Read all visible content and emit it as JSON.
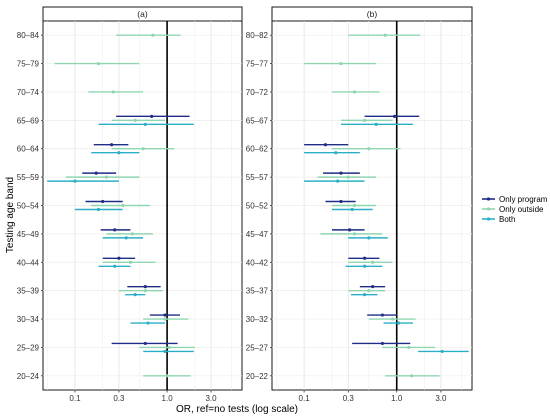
{
  "chart_data": {
    "type": "forest",
    "xlabel": "OR, ref=no tests (log scale)",
    "ylabel": "Testing age band",
    "x_scale": "log",
    "xlim": [
      0.045,
      6.5
    ],
    "x_ticks": [
      0.1,
      0.3,
      1.0,
      3.0
    ],
    "x_tick_labels": [
      "0.1",
      "0.3",
      "1.0",
      "3.0"
    ],
    "reference_line": 1.0,
    "grid": true,
    "legend_position": "right",
    "series": [
      {
        "key": "program",
        "name": "Only program",
        "color": "#1f2d86"
      },
      {
        "key": "outside",
        "name": "Only outside",
        "color": "#8fd6b0"
      },
      {
        "key": "both",
        "name": "Both",
        "color": "#2ab0c6"
      }
    ],
    "panels": [
      {
        "title": "(a)",
        "categories": [
          "80–84",
          "75–79",
          "70–74",
          "65–69",
          "60–64",
          "55–59",
          "50–54",
          "45–49",
          "40–44",
          "35–39",
          "30–34",
          "25–29",
          "20–24"
        ],
        "estimates": {
          "program": [
            null,
            null,
            null,
            {
              "est": 0.68,
              "lo": 0.28,
              "hi": 1.75
            },
            {
              "est": 0.25,
              "lo": 0.16,
              "hi": 0.38
            },
            {
              "est": 0.17,
              "lo": 0.12,
              "hi": 0.28
            },
            {
              "est": 0.2,
              "lo": 0.13,
              "hi": 0.33
            },
            {
              "est": 0.27,
              "lo": 0.19,
              "hi": 0.4
            },
            {
              "est": 0.3,
              "lo": 0.2,
              "hi": 0.45
            },
            {
              "est": 0.58,
              "lo": 0.37,
              "hi": 0.85
            },
            {
              "est": 0.95,
              "lo": 0.65,
              "hi": 1.38
            },
            {
              "est": 0.58,
              "lo": 0.25,
              "hi": 1.3
            },
            null
          ],
          "outside": [
            {
              "est": 0.7,
              "lo": 0.28,
              "hi": 1.4
            },
            {
              "est": 0.18,
              "lo": 0.06,
              "hi": 0.5
            },
            {
              "est": 0.26,
              "lo": 0.14,
              "hi": 0.55
            },
            {
              "est": 0.45,
              "lo": 0.25,
              "hi": 0.95
            },
            {
              "est": 0.55,
              "lo": 0.25,
              "hi": 1.2
            },
            {
              "est": 0.22,
              "lo": 0.08,
              "hi": 0.5
            },
            {
              "est": 0.33,
              "lo": 0.15,
              "hi": 0.65
            },
            {
              "est": 0.42,
              "lo": 0.22,
              "hi": 0.7
            },
            {
              "est": 0.4,
              "lo": 0.2,
              "hi": 0.75
            },
            {
              "est": 0.58,
              "lo": 0.3,
              "hi": 0.9
            },
            {
              "est": 0.95,
              "lo": 0.55,
              "hi": 1.7
            },
            {
              "est": 1.05,
              "lo": 0.5,
              "hi": 2.0
            },
            {
              "est": 1.0,
              "lo": 0.55,
              "hi": 1.8
            }
          ],
          "both": [
            null,
            null,
            null,
            {
              "est": 0.58,
              "lo": 0.18,
              "hi": 1.95
            },
            {
              "est": 0.3,
              "lo": 0.15,
              "hi": 0.5
            },
            {
              "est": 0.1,
              "lo": 0.05,
              "hi": 0.3
            },
            {
              "est": 0.18,
              "lo": 0.1,
              "hi": 0.33
            },
            {
              "est": 0.36,
              "lo": 0.2,
              "hi": 0.55
            },
            {
              "est": 0.27,
              "lo": 0.18,
              "hi": 0.4
            },
            {
              "est": 0.45,
              "lo": 0.35,
              "hi": 0.58
            },
            {
              "est": 0.62,
              "lo": 0.4,
              "hi": 0.95
            },
            {
              "est": 0.95,
              "lo": 0.55,
              "hi": 1.95
            },
            null
          ]
        }
      },
      {
        "title": "(b)",
        "categories": [
          "80–82",
          "75–77",
          "70–72",
          "65–67",
          "60–62",
          "55–57",
          "50–52",
          "45–47",
          "40–42",
          "35–37",
          "30–32",
          "25–27",
          "20–22"
        ],
        "estimates": {
          "program": [
            null,
            null,
            null,
            {
              "est": 0.95,
              "lo": 0.45,
              "hi": 1.75
            },
            {
              "est": 0.17,
              "lo": 0.1,
              "hi": 0.3
            },
            {
              "est": 0.25,
              "lo": 0.16,
              "hi": 0.4
            },
            {
              "est": 0.25,
              "lo": 0.17,
              "hi": 0.36
            },
            {
              "est": 0.31,
              "lo": 0.2,
              "hi": 0.45
            },
            {
              "est": 0.45,
              "lo": 0.3,
              "hi": 0.65
            },
            {
              "est": 0.55,
              "lo": 0.4,
              "hi": 0.75
            },
            {
              "est": 0.7,
              "lo": 0.48,
              "hi": 1.0
            },
            {
              "est": 0.7,
              "lo": 0.33,
              "hi": 1.4
            },
            null
          ],
          "outside": [
            {
              "est": 0.75,
              "lo": 0.3,
              "hi": 1.8
            },
            {
              "est": 0.25,
              "lo": 0.1,
              "hi": 0.6
            },
            {
              "est": 0.35,
              "lo": 0.2,
              "hi": 0.65
            },
            {
              "est": 0.45,
              "lo": 0.25,
              "hi": 0.9
            },
            {
              "est": 0.5,
              "lo": 0.2,
              "hi": 1.1
            },
            {
              "est": 0.3,
              "lo": 0.14,
              "hi": 0.6
            },
            {
              "est": 0.35,
              "lo": 0.2,
              "hi": 0.6
            },
            {
              "est": 0.35,
              "lo": 0.15,
              "hi": 0.7
            },
            {
              "est": 0.55,
              "lo": 0.3,
              "hi": 0.9
            },
            {
              "est": 0.5,
              "lo": 0.3,
              "hi": 0.75
            },
            {
              "est": 0.9,
              "lo": 0.5,
              "hi": 1.6
            },
            {
              "est": 1.35,
              "lo": 0.7,
              "hi": 2.6
            },
            {
              "est": 1.45,
              "lo": 0.75,
              "hi": 2.9
            }
          ],
          "both": [
            null,
            null,
            null,
            {
              "est": 0.6,
              "lo": 0.25,
              "hi": 1.5
            },
            {
              "est": 0.22,
              "lo": 0.1,
              "hi": 0.4
            },
            {
              "est": 0.23,
              "lo": 0.1,
              "hi": 0.45
            },
            {
              "est": 0.33,
              "lo": 0.2,
              "hi": 0.55
            },
            {
              "est": 0.5,
              "lo": 0.3,
              "hi": 0.8
            },
            {
              "est": 0.45,
              "lo": 0.28,
              "hi": 0.7
            },
            {
              "est": 0.45,
              "lo": 0.32,
              "hi": 0.62
            },
            {
              "est": 1.05,
              "lo": 0.72,
              "hi": 1.5
            },
            {
              "est": 3.1,
              "lo": 1.7,
              "hi": 6.0
            },
            null
          ]
        }
      }
    ]
  }
}
